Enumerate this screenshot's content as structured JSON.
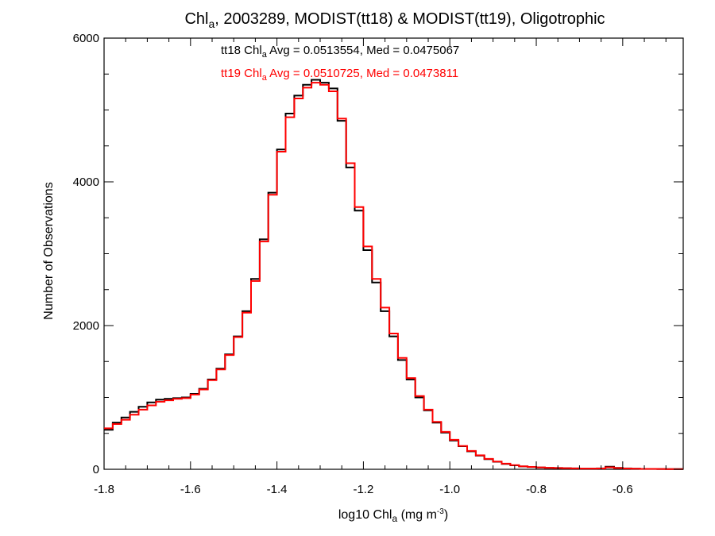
{
  "chart_data": {
    "type": "line",
    "style": "histogram-step",
    "title": {
      "prefix": "Chl",
      "sub": "a",
      "suffix": ", 2003289, MODIST(tt18) & MODIST(tt19), Oligotrophic"
    },
    "xlabel": {
      "prefix": "log10 Chl",
      "sub": "a",
      "mid": " (mg m",
      "sup": "-3",
      "suffix": ")"
    },
    "ylabel": "Number of Observations",
    "xlim": [
      -1.8,
      -0.46
    ],
    "ylim": [
      0,
      6000
    ],
    "x_ticks": [
      -1.8,
      -1.6,
      -1.4,
      -1.2,
      -1.0,
      -0.8,
      -0.6
    ],
    "x_tick_labels": [
      "-1.8",
      "-1.6",
      "-1.4",
      "-1.2",
      "-1.0",
      "-0.8",
      "-0.6"
    ],
    "y_ticks": [
      0,
      2000,
      4000,
      6000
    ],
    "y_tick_labels": [
      "0",
      "2000",
      "4000",
      "6000"
    ],
    "grid": false,
    "annotations": [
      {
        "prefix": "tt18 Chl",
        "sub": "a",
        "suffix": " Avg = 0.0513554, Med = 0.0475067",
        "color": "#000000"
      },
      {
        "prefix": "tt19 Chl",
        "sub": "a",
        "suffix": " Avg = 0.0510725, Med = 0.0473811",
        "color": "#ff0000"
      }
    ],
    "x": [
      -1.8,
      -1.78,
      -1.76,
      -1.74,
      -1.72,
      -1.7,
      -1.68,
      -1.66,
      -1.64,
      -1.62,
      -1.6,
      -1.58,
      -1.56,
      -1.54,
      -1.52,
      -1.5,
      -1.48,
      -1.46,
      -1.44,
      -1.42,
      -1.4,
      -1.38,
      -1.36,
      -1.34,
      -1.32,
      -1.3,
      -1.28,
      -1.26,
      -1.24,
      -1.22,
      -1.2,
      -1.18,
      -1.16,
      -1.14,
      -1.12,
      -1.1,
      -1.08,
      -1.06,
      -1.04,
      -1.02,
      -1.0,
      -0.98,
      -0.96,
      -0.94,
      -0.92,
      -0.9,
      -0.88,
      -0.86,
      -0.84,
      -0.82,
      -0.8,
      -0.78,
      -0.76,
      -0.74,
      -0.72,
      -0.7,
      -0.68,
      -0.66,
      -0.64,
      -0.62,
      -0.6,
      -0.58,
      -0.56,
      -0.54,
      -0.52,
      -0.5,
      -0.48,
      -0.46
    ],
    "series": [
      {
        "name": "tt18",
        "color": "#000000",
        "values": [
          550,
          650,
          720,
          800,
          870,
          930,
          970,
          980,
          990,
          1000,
          1050,
          1120,
          1250,
          1400,
          1600,
          1850,
          2200,
          2650,
          3200,
          3850,
          4450,
          4950,
          5200,
          5350,
          5420,
          5380,
          5300,
          4850,
          4200,
          3600,
          3050,
          2600,
          2200,
          1850,
          1520,
          1250,
          1000,
          820,
          650,
          510,
          400,
          320,
          250,
          190,
          140,
          105,
          75,
          55,
          40,
          32,
          25,
          20,
          18,
          15,
          12,
          10,
          10,
          12,
          35,
          20,
          12,
          8,
          6,
          5,
          4,
          3,
          2,
          2
        ]
      },
      {
        "name": "tt19",
        "color": "#ff0000",
        "values": [
          570,
          630,
          690,
          760,
          830,
          890,
          940,
          960,
          980,
          990,
          1040,
          1110,
          1240,
          1390,
          1590,
          1840,
          2180,
          2620,
          3170,
          3820,
          4420,
          4900,
          5160,
          5310,
          5380,
          5350,
          5260,
          4880,
          4260,
          3650,
          3100,
          2650,
          2250,
          1890,
          1550,
          1270,
          1020,
          830,
          660,
          520,
          410,
          325,
          255,
          195,
          145,
          108,
          78,
          57,
          42,
          33,
          26,
          21,
          18,
          15,
          12,
          10,
          10,
          11,
          28,
          18,
          11,
          8,
          6,
          5,
          4,
          3,
          2,
          2
        ]
      }
    ]
  }
}
